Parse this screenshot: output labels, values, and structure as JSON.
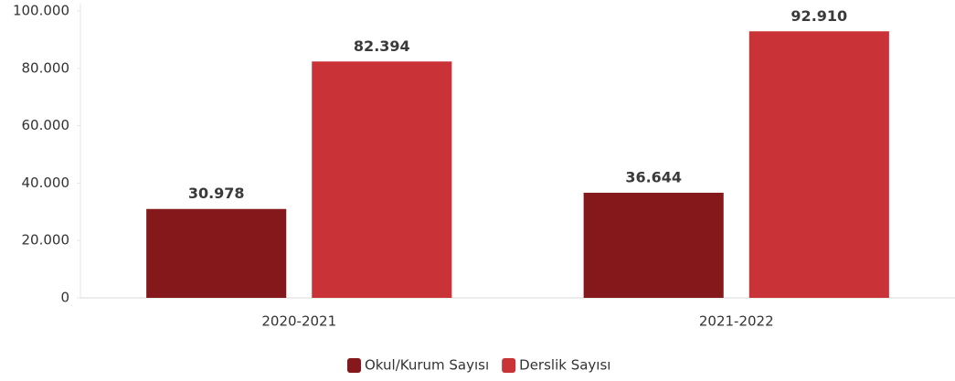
{
  "chart_data": {
    "type": "bar",
    "categories": [
      "2020-2021",
      "2021-2022"
    ],
    "series": [
      {
        "name": "Okul/Kurum Sayısı",
        "color": "#85181b",
        "values": [
          30978,
          36644
        ],
        "value_labels": [
          "30.978",
          "36.644"
        ]
      },
      {
        "name": "Derslik Sayısı",
        "color": "#c93236",
        "values": [
          82394,
          92910
        ],
        "value_labels": [
          "82.394",
          "92.910"
        ]
      }
    ],
    "ylim": [
      0,
      100000
    ],
    "yticks": [
      0,
      {
        "value": 20000,
        "label": "20.000"
      },
      {
        "value": 40000,
        "label": "40.000"
      },
      {
        "value": 60000,
        "label": "60.000"
      },
      {
        "value": 80000,
        "label": "80.000"
      },
      {
        "value": 100000,
        "label": "100.000"
      }
    ],
    "grid": false,
    "legend": "bottom"
  }
}
